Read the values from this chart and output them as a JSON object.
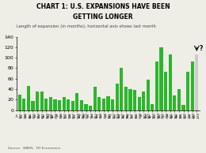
{
  "title1": "CHART 1: U.S. EXPANSIONS HAVE BEEN",
  "title2": "GETTING LONGER",
  "subtitle": "Length of expansion (in months); horizontal axis shows last month",
  "source": "Source:  NBER,  TD Economics.",
  "bar_color": "#2db52d",
  "last_bar_color": "#cccccc",
  "labels": [
    "Jun\n1857",
    "Oct\n1860",
    "Jun\n1861",
    "Apr\n1865",
    "Jun\n1869",
    "Oct\n1873",
    "Mar\n1879",
    "May\n1885",
    "Apr\n1888",
    "Jul\n1890",
    "Jan\n1893",
    "Dec\n1895",
    "Jun\n1897",
    "Dec\n1900",
    "Aug\n1904",
    "May\n1907",
    "Jan\n1910",
    "Jan\n1913",
    "Aug\n1918",
    "Jan\n1920",
    "Jul\n1921",
    "May\n1923",
    "Oct\n1926",
    "Aug\n1927",
    "Mar\n1933",
    "May\n1937",
    "Oct\n1945",
    "Oct\n1948",
    "Jul\n1953",
    "Aug\n1957",
    "Apr\n1960",
    "Dec\n1969",
    "Nov\n1973",
    "Jan\n1980",
    "Jul\n1981",
    "Nov\n1982",
    "Mar\n1991",
    "Dec\n2000",
    "Dec\n2007",
    "Jun\n2009",
    "Feb\n2018"
  ],
  "values": [
    29,
    22,
    46,
    18,
    35,
    35,
    22,
    25,
    20,
    19,
    25,
    20,
    18,
    32,
    19,
    11,
    9,
    44,
    25,
    22,
    27,
    21,
    50,
    80,
    45,
    40,
    39,
    25,
    36,
    58,
    12,
    92,
    120,
    73,
    106,
    28,
    40,
    10,
    73,
    92,
    106
  ],
  "ylim": [
    0,
    140
  ],
  "yticks": [
    0,
    20,
    40,
    60,
    80,
    100,
    120,
    140
  ],
  "bg_color": "#eeeee6",
  "title_fontsize": 5.5,
  "subtitle_fontsize": 3.8,
  "source_fontsize": 3.2,
  "tick_fontsize": 4.5,
  "xtick_fontsize": 2.2
}
